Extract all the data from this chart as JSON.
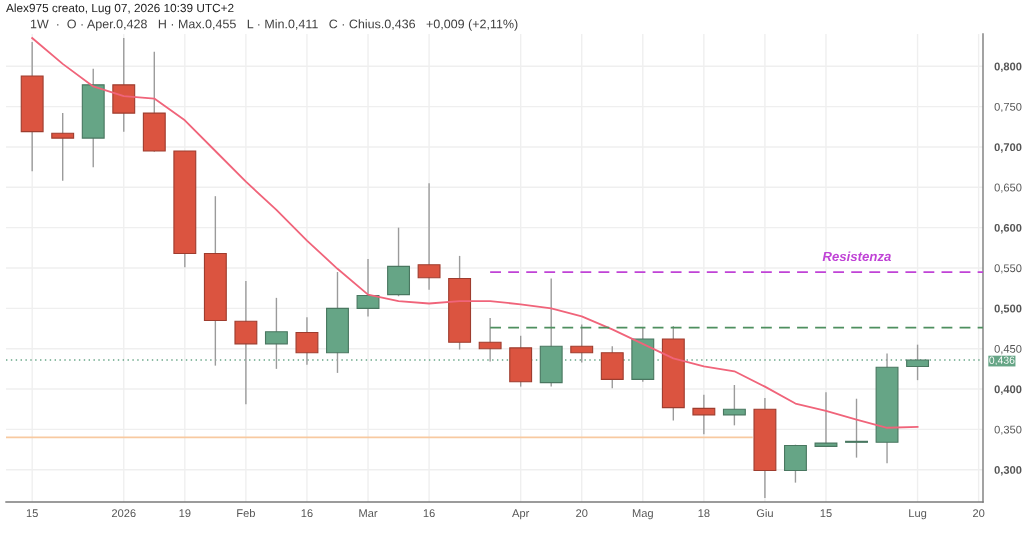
{
  "chart_data": {
    "type": "candlestick",
    "title": "1W  ·  O · Aper.0,428   H · Max.0,455   L · Min.0,411   C · Chius.0,436   +0,009 (+2,11%)",
    "annotations": [
      "Alex975 creato, Lug 07, 2026 10:39 UTC+2"
    ],
    "x": [
      "2025-12-15",
      "2025-12-22",
      "2025-12-29",
      "2026-01-05",
      "2026-01-12",
      "2026-01-19",
      "2026-01-26",
      "2026-02-02",
      "2026-02-09",
      "2026-02-16",
      "2026-02-23",
      "2026-03-02",
      "2026-03-09",
      "2026-03-16",
      "2026-03-23",
      "2026-03-30",
      "2026-04-06",
      "2026-04-13",
      "2026-04-20",
      "2026-04-27",
      "2026-05-04",
      "2026-05-11",
      "2026-05-18",
      "2026-05-25",
      "2026-06-01",
      "2026-06-08",
      "2026-06-15",
      "2026-06-22",
      "2026-06-29",
      "2026-07-06"
    ],
    "ohlc": [
      [
        0.788,
        0.83,
        0.67,
        0.719
      ],
      [
        0.717,
        0.742,
        0.658,
        0.711
      ],
      [
        0.711,
        0.797,
        0.675,
        0.777
      ],
      [
        0.777,
        0.835,
        0.719,
        0.742
      ],
      [
        0.742,
        0.818,
        0.694,
        0.695
      ],
      [
        0.695,
        0.695,
        0.551,
        0.568
      ],
      [
        0.568,
        0.639,
        0.429,
        0.485
      ],
      [
        0.484,
        0.534,
        0.381,
        0.456
      ],
      [
        0.456,
        0.513,
        0.425,
        0.471
      ],
      [
        0.47,
        0.489,
        0.43,
        0.445
      ],
      [
        0.445,
        0.545,
        0.42,
        0.5
      ],
      [
        0.5,
        0.561,
        0.49,
        0.516
      ],
      [
        0.517,
        0.6,
        0.515,
        0.552
      ],
      [
        0.554,
        0.655,
        0.523,
        0.538
      ],
      [
        0.537,
        0.565,
        0.449,
        0.458
      ],
      [
        0.458,
        0.488,
        0.434,
        0.45
      ],
      [
        0.451,
        0.466,
        0.403,
        0.409
      ],
      [
        0.408,
        0.537,
        0.403,
        0.453
      ],
      [
        0.453,
        0.48,
        0.433,
        0.445
      ],
      [
        0.445,
        0.453,
        0.401,
        0.412
      ],
      [
        0.412,
        0.477,
        0.409,
        0.462
      ],
      [
        0.462,
        0.478,
        0.361,
        0.377
      ],
      [
        0.376,
        0.393,
        0.344,
        0.368
      ],
      [
        0.368,
        0.405,
        0.355,
        0.375
      ],
      [
        0.375,
        0.389,
        0.265,
        0.299
      ],
      [
        0.299,
        0.331,
        0.284,
        0.33
      ],
      [
        0.329,
        0.396,
        0.329,
        0.333
      ],
      [
        0.334,
        0.388,
        0.315,
        0.335
      ],
      [
        0.334,
        0.444,
        0.308,
        0.427
      ],
      [
        0.428,
        0.455,
        0.411,
        0.436
      ]
    ],
    "colors": [
      "#db5440",
      "#db5440",
      "#66a586",
      "#db5440",
      "#db5440",
      "#db5440",
      "#db5440",
      "#db5440",
      "#66a586",
      "#db5440",
      "#66a586",
      "#66a586",
      "#66a586",
      "#db5440",
      "#db5440",
      "#db5440",
      "#db5440",
      "#66a586",
      "#db5440",
      "#db5440",
      "#66a586",
      "#db5440",
      "#db5440",
      "#66a586",
      "#db5440",
      "#66a586",
      "#66a586",
      "#66a586",
      "#66a586",
      "#66a586"
    ],
    "series": [
      {
        "type": "line",
        "color": "#f0647a",
        "line_style": "solid",
        "values": [
          0.835,
          0.803,
          0.775,
          0.763,
          0.76,
          0.733,
          0.695,
          0.657,
          0.622,
          0.584,
          0.549,
          0.517,
          0.509,
          0.506,
          0.509,
          0.509,
          0.505,
          0.5,
          0.49,
          0.474,
          0.456,
          0.438,
          0.428,
          0.422,
          0.403,
          0.382,
          0.373,
          0.362,
          0.352,
          0.353
        ]
      },
      {
        "type": "line",
        "name": "Resistenza",
        "color": "#c043d6",
        "line_style": "dashed",
        "x": [
          "2026-03-30",
          "2026-07-21"
        ],
        "values": [
          0.545,
          0.545
        ]
      },
      {
        "type": "line",
        "color": "#4e8f5f",
        "line_style": "dashed",
        "x": [
          "2026-03-30",
          "2026-07-21"
        ],
        "values": [
          0.476,
          0.476
        ]
      },
      {
        "type": "line",
        "color": "#f8c9a0",
        "line_style": "solid",
        "x": [
          "2025-12-09",
          "2026-05-29"
        ],
        "values": [
          0.34,
          0.34
        ]
      }
    ],
    "ref_lines": [
      {
        "axis": "y",
        "value": 0.436,
        "label": "0,436",
        "color": "#66a586",
        "line_style": "dotted"
      }
    ],
    "xlim": [
      "2025-12-09",
      "2026-07-21"
    ],
    "xticks": [
      {
        "value": "2025-12-15",
        "label": "15"
      },
      {
        "value": "2026-01-05",
        "label": "2026"
      },
      {
        "value": "2026-01-19",
        "label": "19"
      },
      {
        "value": "2026-02-02",
        "label": "Feb"
      },
      {
        "value": "2026-02-16",
        "label": "16"
      },
      {
        "value": "2026-03-02",
        "label": "Mar"
      },
      {
        "value": "2026-03-16",
        "label": "16"
      },
      {
        "value": "2026-04-06",
        "label": "Apr"
      },
      {
        "value": "2026-04-20",
        "label": "20"
      },
      {
        "value": "2026-05-04",
        "label": "Mag"
      },
      {
        "value": "2026-05-18",
        "label": "18"
      },
      {
        "value": "2026-06-01",
        "label": "Giu"
      },
      {
        "value": "2026-06-15",
        "label": "15"
      },
      {
        "value": "2026-07-06",
        "label": "Lug"
      },
      {
        "value": "2026-07-20",
        "label": "20"
      }
    ],
    "ylim": [
      0.26,
      0.84
    ],
    "yticks": [
      {
        "value": 0.3,
        "label": "0,300"
      },
      {
        "value": 0.35,
        "label": "0,350"
      },
      {
        "value": 0.4,
        "label": "0,400"
      },
      {
        "value": 0.45,
        "label": "0,450"
      },
      {
        "value": 0.5,
        "label": "0,500"
      },
      {
        "value": 0.55,
        "label": "0,550"
      },
      {
        "value": 0.6,
        "label": "0,600"
      },
      {
        "value": 0.65,
        "label": "0,650"
      },
      {
        "value": 0.7,
        "label": "0,700"
      },
      {
        "value": 0.75,
        "label": "0,750"
      },
      {
        "value": 0.8,
        "label": "0,800"
      }
    ],
    "grid": true
  }
}
